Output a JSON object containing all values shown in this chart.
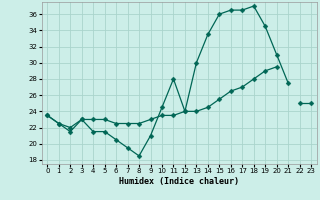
{
  "xlabel": "Humidex (Indice chaleur)",
  "bg_color": "#cceee8",
  "grid_color": "#aad4cc",
  "line_color": "#006655",
  "xlim": [
    -0.5,
    23.5
  ],
  "ylim": [
    17.5,
    37.5
  ],
  "yticks": [
    18,
    20,
    22,
    24,
    26,
    28,
    30,
    32,
    34,
    36
  ],
  "xticks": [
    0,
    1,
    2,
    3,
    4,
    5,
    6,
    7,
    8,
    9,
    10,
    11,
    12,
    13,
    14,
    15,
    16,
    17,
    18,
    19,
    20,
    21,
    22,
    23
  ],
  "series1_x": [
    0,
    1,
    2,
    3,
    4,
    5,
    6,
    7,
    8,
    9,
    10,
    11,
    12,
    13,
    14,
    15,
    16,
    17,
    18,
    19,
    20,
    21,
    22,
    23
  ],
  "series1_y": [
    23.5,
    22.5,
    21.5,
    23.0,
    21.5,
    21.5,
    20.5,
    19.5,
    18.5,
    21.0,
    24.5,
    28.0,
    24.0,
    30.0,
    33.5,
    36.0,
    36.5,
    36.5,
    37.0,
    34.5,
    31.0,
    27.5,
    null,
    null
  ],
  "series2_x": [
    0,
    1,
    2,
    3,
    4,
    5,
    6,
    7,
    8,
    9,
    10,
    11,
    12,
    13,
    14,
    15,
    16,
    17,
    18,
    19,
    20,
    21,
    22,
    23
  ],
  "series2_y": [
    23.5,
    22.5,
    22.0,
    23.0,
    23.0,
    23.0,
    22.5,
    22.5,
    22.5,
    23.0,
    23.5,
    23.5,
    24.0,
    24.0,
    24.5,
    25.5,
    26.5,
    27.0,
    28.0,
    29.0,
    29.5,
    null,
    25.0,
    25.0
  ],
  "markersize": 2.5,
  "linewidth": 0.9
}
